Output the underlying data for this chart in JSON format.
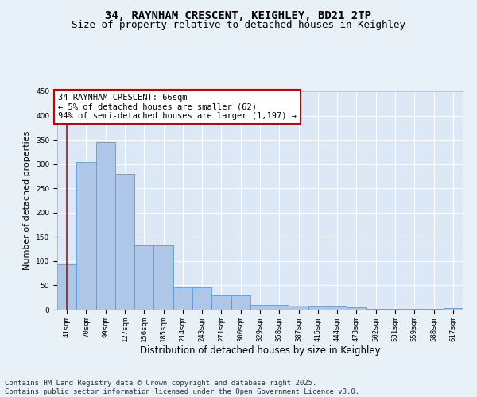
{
  "title": "34, RAYNHAM CRESCENT, KEIGHLEY, BD21 2TP",
  "subtitle": "Size of property relative to detached houses in Keighley",
  "xlabel": "Distribution of detached houses by size in Keighley",
  "ylabel": "Number of detached properties",
  "categories": [
    "41sqm",
    "70sqm",
    "99sqm",
    "127sqm",
    "156sqm",
    "185sqm",
    "214sqm",
    "243sqm",
    "271sqm",
    "300sqm",
    "329sqm",
    "358sqm",
    "387sqm",
    "415sqm",
    "444sqm",
    "473sqm",
    "502sqm",
    "531sqm",
    "559sqm",
    "588sqm",
    "617sqm"
  ],
  "values": [
    94,
    305,
    345,
    280,
    133,
    133,
    46,
    46,
    30,
    30,
    10,
    10,
    8,
    7,
    6,
    5,
    2,
    1,
    1,
    1,
    3
  ],
  "bar_color": "#aec6e8",
  "bar_edge_color": "#5b9bd5",
  "annotation_text": "34 RAYNHAM CRESCENT: 66sqm\n← 5% of detached houses are smaller (62)\n94% of semi-detached houses are larger (1,197) →",
  "annotation_box_color": "#ffffff",
  "annotation_box_edge": "#cc0000",
  "vline_color": "#cc0000",
  "vline_x_index": 0,
  "ylim": [
    0,
    450
  ],
  "yticks": [
    0,
    50,
    100,
    150,
    200,
    250,
    300,
    350,
    400,
    450
  ],
  "bg_color": "#e8f0f8",
  "plot_bg_color": "#dce8f5",
  "footer_text": "Contains HM Land Registry data © Crown copyright and database right 2025.\nContains public sector information licensed under the Open Government Licence v3.0.",
  "title_fontsize": 10,
  "subtitle_fontsize": 9,
  "xlabel_fontsize": 8.5,
  "ylabel_fontsize": 8,
  "tick_fontsize": 6.5,
  "footer_fontsize": 6.5,
  "annotation_fontsize": 7.5
}
